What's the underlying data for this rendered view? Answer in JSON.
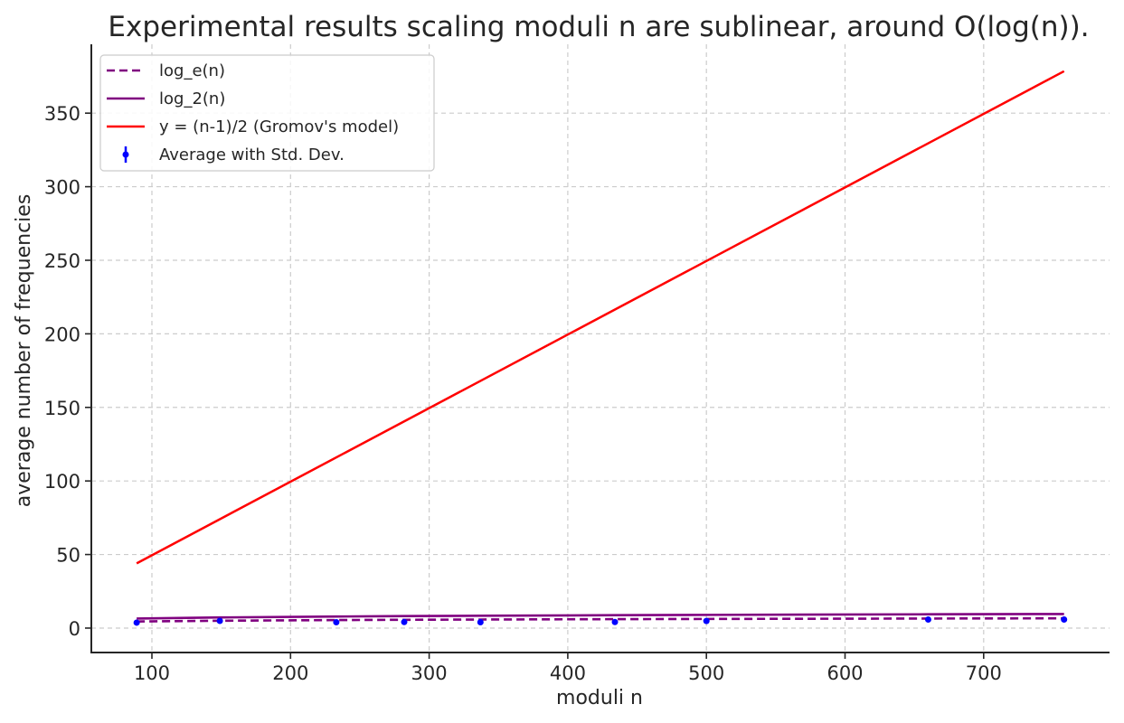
{
  "chart_data": {
    "type": "line",
    "title": "Experimental results scaling moduli n are sublinear, around O(log(n)).",
    "xlabel": "moduli n",
    "ylabel": "average number of frequencies",
    "xlim": [
      56.3,
      790.8
    ],
    "ylim": [
      -16.6,
      396.8
    ],
    "xticks": [
      100,
      200,
      300,
      400,
      500,
      600,
      700
    ],
    "yticks": [
      0,
      50,
      100,
      150,
      200,
      250,
      300,
      350
    ],
    "grid": true,
    "legend_position": "upper left",
    "x": [
      89,
      149,
      233,
      282,
      337,
      434,
      500,
      660,
      758
    ],
    "series": [
      {
        "name": "log_e(n)",
        "style": "dashed",
        "color": "#800080",
        "values": [
          4.49,
          5.0,
          5.45,
          5.64,
          5.82,
          6.07,
          6.21,
          6.49,
          6.63
        ]
      },
      {
        "name": "log_2(n)",
        "style": "solid",
        "color": "#800080",
        "values": [
          6.48,
          7.22,
          7.86,
          8.14,
          8.4,
          8.76,
          8.97,
          9.37,
          9.57
        ]
      },
      {
        "name": "y = (n-1)/2 (Gromov's model)",
        "style": "solid",
        "color": "#ff0000",
        "values": [
          44,
          74,
          116,
          140.5,
          168,
          216.5,
          249.5,
          329.5,
          378.5
        ]
      },
      {
        "name": "Average with Std. Dev.",
        "style": "errorbar",
        "color": "#0000ff",
        "values": [
          3.7,
          4.9,
          4.0,
          4.1,
          4.0,
          4.1,
          4.8,
          5.8,
          5.8
        ],
        "std": [
          0.3,
          0.4,
          0.3,
          0.3,
          0.3,
          0.3,
          0.8,
          1.0,
          1.0
        ]
      }
    ]
  },
  "colors": {
    "text": "#262626",
    "grid": "#cccccc",
    "axis": "#262626",
    "legend_border": "#cccccc"
  }
}
